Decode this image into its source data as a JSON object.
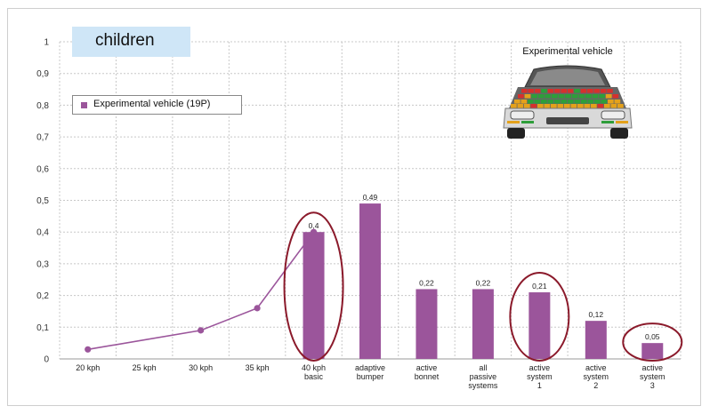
{
  "chart_data": {
    "type": "bar",
    "title": "children",
    "categories": [
      "20 kph",
      "25 kph",
      "30 kph",
      "35 kph",
      "40 kph\nbasic",
      "adaptive\nbumper",
      "active\nbonnet",
      "all\npassive\nsystems",
      "active\nsystem\n1",
      "active\nsystem\n2",
      "active\nsystem\n3"
    ],
    "series": [
      {
        "name": "Experimental vehicle (19P)",
        "bar_values": [
          null,
          null,
          null,
          null,
          0.4,
          0.49,
          0.22,
          0.22,
          0.21,
          0.12,
          0.05
        ],
        "bar_labels": [
          "",
          "",
          "",
          "",
          "0,4",
          "0,49",
          "0,22",
          "0,22",
          "0,21",
          "0,12",
          "0,05"
        ],
        "line_points": [
          {
            "x": "20 kph",
            "y": 0.03
          },
          {
            "x": "30 kph",
            "y": 0.09
          },
          {
            "x": "35 kph",
            "y": 0.16
          },
          {
            "x": "40 kph\nbasic",
            "y": 0.4
          }
        ]
      }
    ],
    "yticks": [
      "0",
      "0,1",
      "0,2",
      "0,3",
      "0,4",
      "0,5",
      "0,6",
      "0,7",
      "0,8",
      "0,9",
      "1"
    ],
    "ylim": [
      0,
      1
    ],
    "xlabel": "",
    "ylabel": "",
    "grid": true,
    "legend_position": "top-left",
    "highlighted_categories": [
      "40 kph\nbasic",
      "active\nsystem\n1",
      "active\nsystem\n3"
    ],
    "colors": {
      "bar": "#9b559b",
      "line": "#9b559b",
      "highlight_ellipse": "#8b1a2b",
      "title_box": "#cfe6f7"
    }
  },
  "title": "children",
  "legend_label": "Experimental vehicle (19P)",
  "image_label": "Experimental vehicle"
}
